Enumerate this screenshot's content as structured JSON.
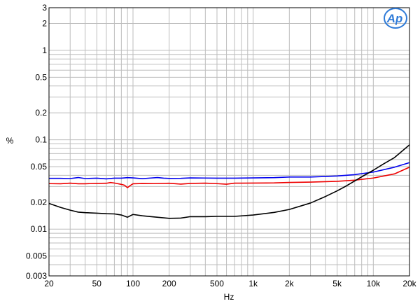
{
  "chart_data": {
    "type": "line",
    "xlabel": "Hz",
    "ylabel": "%",
    "x_scale": "log",
    "y_scale": "log",
    "xlim": [
      20,
      20000
    ],
    "ylim": [
      0.003,
      3
    ],
    "grid": true,
    "x_ticks": [
      {
        "value": 20,
        "label": "20"
      },
      {
        "value": 50,
        "label": "50"
      },
      {
        "value": 100,
        "label": "100"
      },
      {
        "value": 200,
        "label": "200"
      },
      {
        "value": 500,
        "label": "500"
      },
      {
        "value": 1000,
        "label": "1k"
      },
      {
        "value": 2000,
        "label": "2k"
      },
      {
        "value": 5000,
        "label": "5k"
      },
      {
        "value": 10000,
        "label": "10k"
      },
      {
        "value": 20000,
        "label": "20k"
      }
    ],
    "y_ticks": [
      {
        "value": 3,
        "label": "3"
      },
      {
        "value": 2,
        "label": "2"
      },
      {
        "value": 1,
        "label": "1"
      },
      {
        "value": 0.5,
        "label": "0.5"
      },
      {
        "value": 0.2,
        "label": "0.2"
      },
      {
        "value": 0.1,
        "label": "0.1"
      },
      {
        "value": 0.05,
        "label": "0.05"
      },
      {
        "value": 0.02,
        "label": "0.02"
      },
      {
        "value": 0.01,
        "label": "0.01"
      },
      {
        "value": 0.005,
        "label": "0.005"
      },
      {
        "value": 0.003,
        "label": "0.003"
      }
    ],
    "series": [
      {
        "color": "#0000ee",
        "points": [
          [
            20,
            0.037
          ],
          [
            25,
            0.037
          ],
          [
            30,
            0.0368
          ],
          [
            35,
            0.0378
          ],
          [
            40,
            0.0368
          ],
          [
            50,
            0.0372
          ],
          [
            60,
            0.0365
          ],
          [
            70,
            0.0372
          ],
          [
            80,
            0.0372
          ],
          [
            90,
            0.0377
          ],
          [
            100,
            0.0374
          ],
          [
            120,
            0.0367
          ],
          [
            140,
            0.0373
          ],
          [
            160,
            0.0378
          ],
          [
            180,
            0.0372
          ],
          [
            200,
            0.0369
          ],
          [
            250,
            0.037
          ],
          [
            300,
            0.0374
          ],
          [
            400,
            0.0373
          ],
          [
            500,
            0.0372
          ],
          [
            700,
            0.0372
          ],
          [
            1000,
            0.0374
          ],
          [
            1500,
            0.0377
          ],
          [
            2000,
            0.0383
          ],
          [
            3000,
            0.0383
          ],
          [
            5000,
            0.0393
          ],
          [
            7000,
            0.0407
          ],
          [
            10000,
            0.0435
          ],
          [
            15000,
            0.0493
          ],
          [
            20000,
            0.0555
          ]
        ]
      },
      {
        "color": "#ee0000",
        "points": [
          [
            20,
            0.0323
          ],
          [
            25,
            0.0322
          ],
          [
            30,
            0.0327
          ],
          [
            35,
            0.0322
          ],
          [
            40,
            0.0322
          ],
          [
            50,
            0.0325
          ],
          [
            60,
            0.0326
          ],
          [
            65,
            0.0332
          ],
          [
            70,
            0.0328
          ],
          [
            80,
            0.0317
          ],
          [
            85,
            0.031
          ],
          [
            90,
            0.0291
          ],
          [
            95,
            0.0308
          ],
          [
            100,
            0.0322
          ],
          [
            120,
            0.0324
          ],
          [
            150,
            0.0323
          ],
          [
            200,
            0.0326
          ],
          [
            250,
            0.0319
          ],
          [
            300,
            0.0325
          ],
          [
            400,
            0.0327
          ],
          [
            500,
            0.0323
          ],
          [
            600,
            0.0318
          ],
          [
            700,
            0.0327
          ],
          [
            800,
            0.0327
          ],
          [
            1000,
            0.0328
          ],
          [
            1500,
            0.0329
          ],
          [
            2000,
            0.0333
          ],
          [
            3000,
            0.0336
          ],
          [
            5000,
            0.0343
          ],
          [
            7000,
            0.0353
          ],
          [
            10000,
            0.0373
          ],
          [
            15000,
            0.0415
          ],
          [
            20000,
            0.0493
          ]
        ]
      },
      {
        "color": "#000000",
        "points": [
          [
            20,
            0.0194
          ],
          [
            25,
            0.0175
          ],
          [
            30,
            0.0163
          ],
          [
            35,
            0.0155
          ],
          [
            40,
            0.0153
          ],
          [
            50,
            0.0151
          ],
          [
            60,
            0.0149
          ],
          [
            70,
            0.0148
          ],
          [
            80,
            0.0144
          ],
          [
            90,
            0.0136
          ],
          [
            100,
            0.0146
          ],
          [
            120,
            0.0141
          ],
          [
            150,
            0.0137
          ],
          [
            200,
            0.0132
          ],
          [
            250,
            0.0133
          ],
          [
            300,
            0.0138
          ],
          [
            400,
            0.0138
          ],
          [
            500,
            0.0139
          ],
          [
            700,
            0.0139
          ],
          [
            1000,
            0.0144
          ],
          [
            1500,
            0.0154
          ],
          [
            2000,
            0.0166
          ],
          [
            3000,
            0.0196
          ],
          [
            4000,
            0.0232
          ],
          [
            5000,
            0.0268
          ],
          [
            6000,
            0.0306
          ],
          [
            7000,
            0.0346
          ],
          [
            8000,
            0.0385
          ],
          [
            10000,
            0.0456
          ],
          [
            12000,
            0.0531
          ],
          [
            15000,
            0.0632
          ],
          [
            20000,
            0.0876
          ]
        ]
      }
    ]
  },
  "logo": {
    "text": "Ap",
    "color": "#2f7bd8"
  }
}
